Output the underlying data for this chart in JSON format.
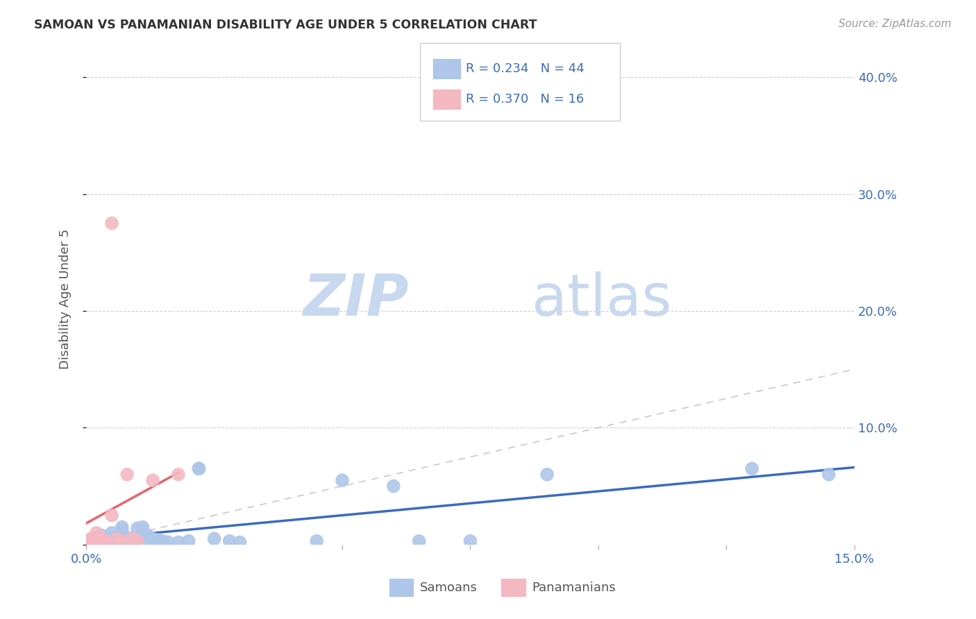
{
  "title": "SAMOAN VS PANAMANIAN DISABILITY AGE UNDER 5 CORRELATION CHART",
  "source": "Source: ZipAtlas.com",
  "ylabel": "Disability Age Under 5",
  "xlim": [
    0.0,
    0.15
  ],
  "ylim": [
    0.0,
    0.42
  ],
  "samoans_R": 0.234,
  "samoans_N": 44,
  "panamanians_R": 0.37,
  "panamanians_N": 16,
  "samoans_color": "#aec6e8",
  "panamanians_color": "#f4b8c1",
  "samoans_line_color": "#3a6bbf",
  "panamanians_line_color": "#e8636a",
  "diagonal_color": "#c8c8c8",
  "watermark_color": "#d5e5f5",
  "background_color": "#ffffff",
  "legend_text_color": "#3a6bbf",
  "samoans_x": [
    0.001,
    0.001,
    0.002,
    0.002,
    0.003,
    0.003,
    0.003,
    0.004,
    0.004,
    0.005,
    0.005,
    0.005,
    0.006,
    0.006,
    0.007,
    0.007,
    0.008,
    0.008,
    0.009,
    0.01,
    0.01,
    0.011,
    0.011,
    0.012,
    0.012,
    0.013,
    0.014,
    0.015,
    0.016,
    0.018,
    0.02,
    0.022,
    0.022,
    0.025,
    0.028,
    0.03,
    0.045,
    0.05,
    0.06,
    0.065,
    0.075,
    0.09,
    0.13,
    0.145
  ],
  "samoans_y": [
    0.005,
    0.003,
    0.005,
    0.003,
    0.008,
    0.005,
    0.003,
    0.005,
    0.003,
    0.01,
    0.006,
    0.003,
    0.005,
    0.003,
    0.015,
    0.012,
    0.005,
    0.003,
    0.006,
    0.014,
    0.005,
    0.015,
    0.013,
    0.008,
    0.005,
    0.005,
    0.004,
    0.003,
    0.002,
    0.002,
    0.003,
    0.065,
    0.065,
    0.005,
    0.003,
    0.002,
    0.003,
    0.055,
    0.05,
    0.003,
    0.003,
    0.06,
    0.065,
    0.06
  ],
  "panamanians_x": [
    0.001,
    0.001,
    0.002,
    0.002,
    0.003,
    0.003,
    0.004,
    0.005,
    0.005,
    0.006,
    0.007,
    0.008,
    0.009,
    0.01,
    0.013,
    0.018
  ],
  "panamanians_y": [
    0.003,
    0.005,
    0.01,
    0.005,
    0.005,
    0.003,
    0.003,
    0.275,
    0.025,
    0.005,
    0.003,
    0.06,
    0.005,
    0.003,
    0.055,
    0.06
  ],
  "yticks": [
    0.0,
    0.1,
    0.2,
    0.3,
    0.4
  ],
  "ytick_labels": [
    "",
    "10.0%",
    "20.0%",
    "30.0%",
    "40.0%"
  ],
  "xticks": [
    0.0,
    0.05,
    0.075,
    0.1,
    0.125,
    0.15
  ],
  "xtick_labels": [
    "0.0%",
    "",
    "",
    "",
    "",
    "15.0%"
  ]
}
